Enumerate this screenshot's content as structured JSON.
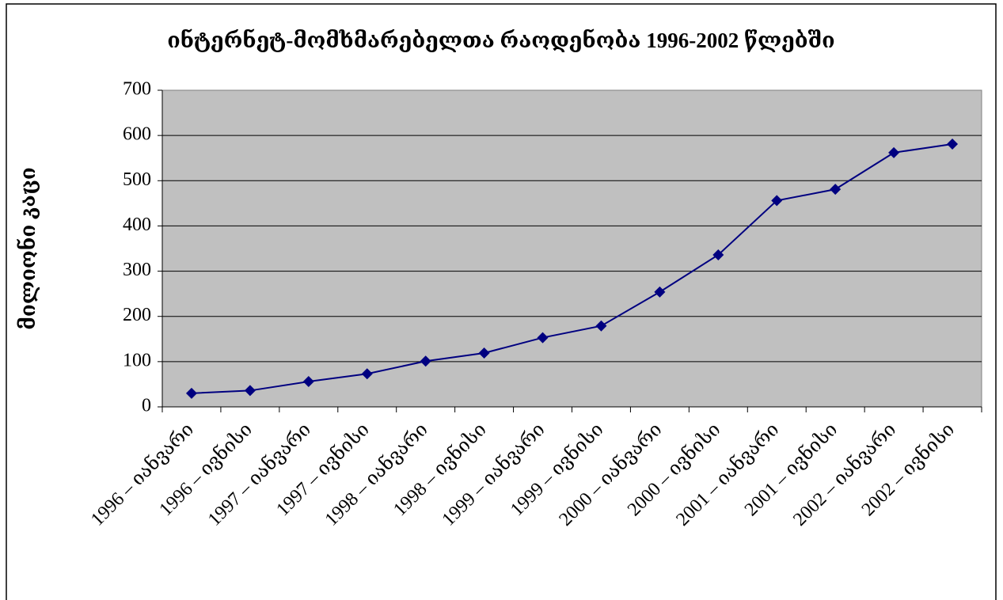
{
  "chart_data": {
    "type": "line",
    "title": "ინტერნეტ-მომხმარებელთა რაოდენობა 1996-2002 წლებში",
    "y_label": "მილიონი კაცი",
    "categories": [
      "1996 – იანვარი",
      "1996 – ივნისი",
      "1997 – იანვარი",
      "1997 – ივნისი",
      "1998 – იანვარი",
      "1998 – ივნისი",
      "1999 – იანვარი",
      "1999 – ივნისი",
      "2000 – იანვარი",
      "2000 – ივნისი",
      "2001 – იანვარი",
      "2001 – ივნისი",
      "2002 – იანვარი",
      "2002 – ივნისი"
    ],
    "values": [
      30,
      36,
      56,
      73,
      101,
      119,
      153,
      179,
      254,
      336,
      456,
      481,
      562,
      581
    ],
    "color": "#000080",
    "ylim": [
      0,
      700
    ],
    "yticks": [
      0,
      100,
      200,
      300,
      400,
      500,
      600,
      700
    ],
    "grid": true
  }
}
